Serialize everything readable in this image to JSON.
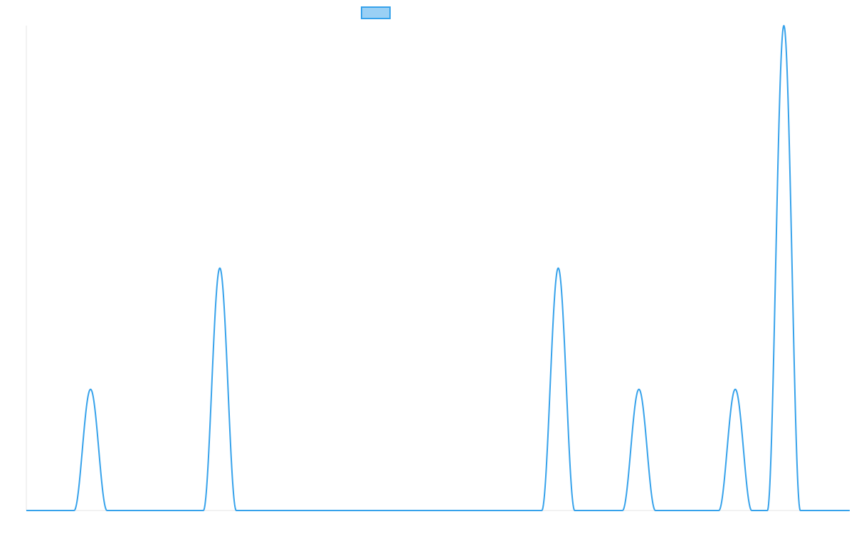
{
  "chart_data": {
    "type": "line",
    "title": "",
    "xlabel": "",
    "ylabel": "",
    "grid": false,
    "legend": {
      "position": "top-center",
      "entries": [
        {
          "label": ""
        }
      ]
    },
    "xlim": [
      0,
      100
    ],
    "ylim": [
      0,
      4
    ],
    "colors": {
      "line": "#36a2eb",
      "legend_fill": "#9ad0f5"
    },
    "series": [
      {
        "name": "",
        "peaks": [
          {
            "x": 7.8,
            "y": 1.0,
            "half_width": 2.0
          },
          {
            "x": 23.5,
            "y": 2.0,
            "half_width": 2.0
          },
          {
            "x": 64.6,
            "y": 2.0,
            "half_width": 2.0
          },
          {
            "x": 74.4,
            "y": 1.0,
            "half_width": 2.0
          },
          {
            "x": 86.1,
            "y": 1.0,
            "half_width": 2.0
          },
          {
            "x": 92.0,
            "y": 4.0,
            "half_width": 2.0
          }
        ]
      }
    ]
  }
}
